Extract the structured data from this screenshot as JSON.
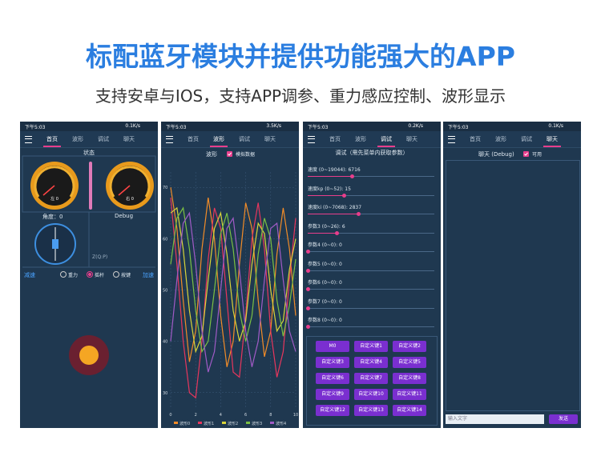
{
  "header": {
    "title": "标配蓝牙模块并提供功能强大的APP",
    "subtitle": "支持安卓与IOS，支持APP调参、重力感应控制、波形显示"
  },
  "screens": [
    {
      "time": "下午5:03",
      "speed": "0.1K/s",
      "tabs": [
        "首页",
        "波形",
        "调试",
        "聊天"
      ],
      "active": 0,
      "status_title": "状态",
      "gauge_left": "左 0",
      "gauge_right": "右 0",
      "angle": "角度：0",
      "debug": "Debug",
      "z_label": "Z(Q:P)",
      "decel": "减速",
      "modes": [
        "重力",
        "摇杆",
        "按键"
      ],
      "selected_mode": 1,
      "accel": "加速"
    },
    {
      "time": "下午5:03",
      "speed": "3.5K/s",
      "tabs": [
        "首页",
        "波形",
        "调试",
        "聊天"
      ],
      "active": 1,
      "wave_title": "波形",
      "checkbox": "模拟数据"
    },
    {
      "time": "下午5:03",
      "speed": "0.2K/s",
      "tabs": [
        "首页",
        "波形",
        "调试",
        "聊天"
      ],
      "active": 2,
      "debug_title": "调试（需先菜单内获取参数）",
      "sliders": [
        {
          "label": "速度 (0~19044): 6716",
          "min": 0,
          "max": 19044,
          "value": 6716
        },
        {
          "label": "速度kp (0~52): 15",
          "min": 0,
          "max": 52,
          "value": 15
        },
        {
          "label": "速度ki (0~7068): 2837",
          "min": 0,
          "max": 7068,
          "value": 2837
        },
        {
          "label": "参数3 (0~26): 6",
          "min": 0,
          "max": 26,
          "value": 6
        },
        {
          "label": "参数4 (0~0): 0",
          "min": 0,
          "max": 0,
          "value": 0
        },
        {
          "label": "参数5 (0~0): 0",
          "min": 0,
          "max": 0,
          "value": 0
        },
        {
          "label": "参数6 (0~0): 0",
          "min": 0,
          "max": 0,
          "value": 0
        },
        {
          "label": "参数7 (0~0): 0",
          "min": 0,
          "max": 0,
          "value": 0
        },
        {
          "label": "参数8 (0~0): 0",
          "min": 0,
          "max": 0,
          "value": 0
        }
      ],
      "buttons": [
        "M0",
        "自定义键1",
        "自定义键2",
        "自定义键3",
        "自定义键4",
        "自定义键5",
        "自定义键6",
        "自定义键7",
        "自定义键8",
        "自定义键9",
        "自定义键10",
        "自定义键11",
        "自定义键12",
        "自定义键13",
        "自定义键14"
      ]
    },
    {
      "time": "下午5:03",
      "speed": "0.1K/s",
      "tabs": [
        "首页",
        "波形",
        "调试",
        "聊天"
      ],
      "active": 3,
      "chat_title": "聊天 (Debug)",
      "checkbox": "可用",
      "input": "输入文字",
      "send": "发送"
    }
  ],
  "chart_data": {
    "type": "line",
    "x": [
      0,
      0.5,
      1,
      1.5,
      2,
      2.5,
      3,
      3.5,
      4,
      4.5,
      5,
      5.5,
      6,
      6.5,
      7,
      7.5,
      8,
      8.5,
      9,
      9.5,
      10
    ],
    "xlim": [
      0,
      10
    ],
    "xticks": [
      0,
      2,
      4,
      6,
      8,
      10
    ],
    "ylim": [
      27,
      73
    ],
    "yticks": [
      30,
      40,
      50,
      60,
      70
    ],
    "grid": true,
    "series": [
      {
        "name": "波形0",
        "color": "#f28c28",
        "values": [
          70,
          62,
          48,
          36,
          42,
          58,
          68,
          60,
          45,
          35,
          40,
          55,
          67,
          62,
          48,
          37,
          42,
          57,
          66,
          58,
          45
        ]
      },
      {
        "name": "波形1",
        "color": "#e8365d",
        "values": [
          68,
          55,
          40,
          30,
          29,
          40,
          56,
          66,
          62,
          48,
          34,
          33,
          45,
          60,
          67,
          58,
          42,
          33,
          38,
          52,
          64
        ]
      },
      {
        "name": "波形2",
        "color": "#d9d43a",
        "values": [
          65,
          66,
          58,
          46,
          38,
          41,
          52,
          62,
          65,
          57,
          46,
          40,
          44,
          55,
          63,
          61,
          50,
          42,
          44,
          54,
          60
        ]
      },
      {
        "name": "波形3",
        "color": "#7bc043",
        "values": [
          55,
          64,
          66,
          58,
          46,
          38,
          40,
          50,
          61,
          65,
          58,
          46,
          40,
          45,
          57,
          64,
          60,
          48,
          41,
          47,
          56
        ]
      },
      {
        "name": "波形4",
        "color": "#a05bc6",
        "values": [
          40,
          52,
          63,
          65,
          55,
          42,
          34,
          38,
          50,
          62,
          64,
          54,
          42,
          35,
          40,
          52,
          62,
          63,
          52,
          42,
          38
        ]
      }
    ]
  }
}
